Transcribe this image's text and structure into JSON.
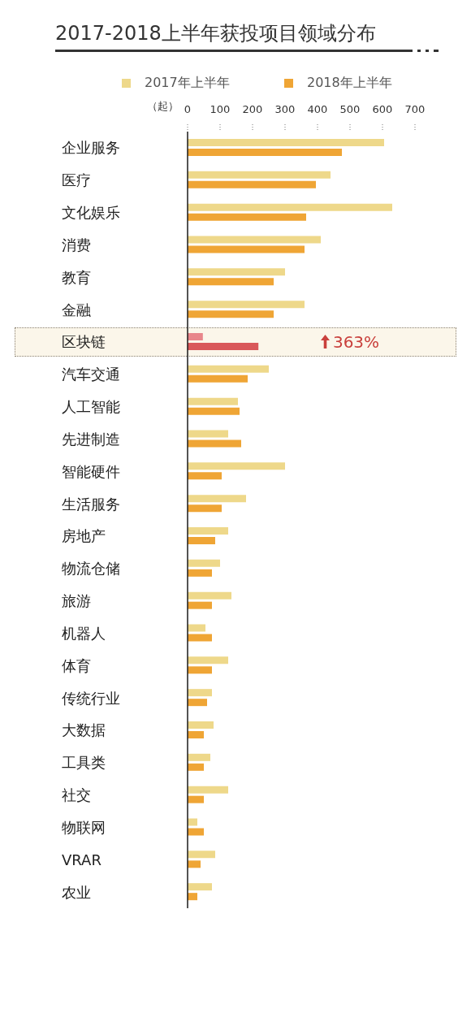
{
  "chart_data": {
    "type": "bar",
    "orientation": "horizontal",
    "title": "2017-2018上半年获投项目领域分布",
    "xlabel": "（起）",
    "categories": [
      "企业服务",
      "医疗",
      "文化娱乐",
      "消费",
      "教育",
      "金融",
      "区块链",
      "汽车交通",
      "人工智能",
      "先进制造",
      "智能硬件",
      "生活服务",
      "房地产",
      "物流仓储",
      "旅游",
      "机器人",
      "体育",
      "传统行业",
      "大数据",
      "工具类",
      "社交",
      "物联网",
      "VRAR",
      "农业"
    ],
    "series": [
      {
        "name": "2017年上半年",
        "color": "#eed88a",
        "colors": [
          "#eed88a",
          "#eed88a",
          "#eed88a",
          "#eed88a",
          "#eed88a",
          "#eed88a",
          "#e8868b",
          "#eed88a",
          "#eed88a",
          "#eed88a",
          "#eed88a",
          "#eed88a",
          "#eed88a",
          "#eed88a",
          "#eed88a",
          "#eed88a",
          "#eed88a",
          "#eed88a",
          "#eed88a",
          "#eed88a",
          "#eed88a",
          "#eed88a",
          "#eed88a",
          "#eed88a"
        ],
        "values": [
          605,
          440,
          630,
          410,
          300,
          360,
          47,
          250,
          155,
          125,
          300,
          180,
          125,
          100,
          135,
          55,
          125,
          75,
          80,
          70,
          125,
          30,
          85,
          75
        ]
      },
      {
        "name": "2018年上半年",
        "color": "#efa535",
        "colors": [
          "#efa535",
          "#efa535",
          "#efa535",
          "#efa535",
          "#efa535",
          "#efa535",
          "#d9585a",
          "#efa535",
          "#efa535",
          "#efa535",
          "#efa535",
          "#efa535",
          "#efa535",
          "#efa535",
          "#efa535",
          "#efa535",
          "#efa535",
          "#efa535",
          "#efa535",
          "#efa535",
          "#efa535",
          "#efa535",
          "#efa535",
          "#efa535"
        ],
        "values": [
          475,
          395,
          365,
          360,
          265,
          265,
          218,
          185,
          160,
          165,
          105,
          105,
          85,
          75,
          75,
          75,
          75,
          60,
          50,
          50,
          50,
          50,
          40,
          30
        ]
      }
    ],
    "xlim": [
      0,
      700
    ],
    "xticks": [
      0,
      100,
      200,
      300,
      400,
      500,
      600,
      700
    ],
    "legend": "top",
    "bands": [
      {
        "axis": "y",
        "from": "区块链",
        "to": "区块链",
        "color": "#fbf6ea"
      }
    ],
    "annotations": [
      "363%"
    ]
  }
}
